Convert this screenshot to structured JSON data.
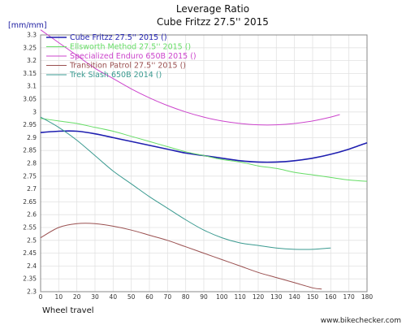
{
  "chart_data": {
    "type": "line",
    "title": "Leverage Ratio",
    "subtitle": "Cube Fritzz 27.5'' 2015",
    "ylabel": "[mm/mm]",
    "xlabel": "Wheel travel",
    "xlim": [
      0,
      180
    ],
    "ylim": [
      2.3,
      3.3
    ],
    "xticks": [
      0,
      10,
      20,
      30,
      40,
      50,
      60,
      70,
      80,
      90,
      100,
      110,
      120,
      130,
      140,
      150,
      160,
      170,
      180
    ],
    "yticks": [
      2.3,
      2.35,
      2.4,
      2.45,
      2.5,
      2.55,
      2.6,
      2.65,
      2.7,
      2.75,
      2.8,
      2.85,
      2.9,
      2.95,
      3,
      3.05,
      3.1,
      3.15,
      3.2,
      3.25,
      3.3
    ],
    "grid": true,
    "legend_position": "top-left",
    "series": [
      {
        "name": "Cube Fritzz 27.5'' 2015 ()",
        "color": "#1f1fb0",
        "width": 1.6,
        "x": [
          0,
          10,
          20,
          30,
          40,
          50,
          60,
          70,
          80,
          90,
          100,
          110,
          120,
          130,
          140,
          150,
          160,
          170,
          180
        ],
        "y": [
          2.92,
          2.925,
          2.925,
          2.915,
          2.9,
          2.885,
          2.87,
          2.855,
          2.84,
          2.83,
          2.82,
          2.81,
          2.805,
          2.805,
          2.81,
          2.82,
          2.835,
          2.855,
          2.88
        ]
      },
      {
        "name": "Ellsworth Method 27.5'' 2015 ()",
        "color": "#66dd66",
        "width": 1.0,
        "x": [
          0,
          10,
          20,
          30,
          40,
          50,
          60,
          70,
          80,
          90,
          100,
          110,
          120,
          130,
          140,
          150,
          160,
          170,
          180
        ],
        "y": [
          2.975,
          2.965,
          2.955,
          2.94,
          2.925,
          2.905,
          2.885,
          2.865,
          2.845,
          2.83,
          2.815,
          2.805,
          2.79,
          2.78,
          2.765,
          2.755,
          2.745,
          2.735,
          2.73
        ]
      },
      {
        "name": "Specialized Enduro 650B 2015 ()",
        "color": "#cc44cc",
        "width": 1.0,
        "x": [
          0,
          10,
          20,
          30,
          40,
          50,
          60,
          70,
          80,
          90,
          100,
          110,
          120,
          130,
          140,
          150,
          160,
          165
        ],
        "y": [
          3.32,
          3.27,
          3.22,
          3.17,
          3.13,
          3.09,
          3.055,
          3.025,
          3.0,
          2.98,
          2.965,
          2.955,
          2.95,
          2.95,
          2.955,
          2.965,
          2.98,
          2.99
        ]
      },
      {
        "name": "Transition Patrol 27.5'' 2015 ()",
        "color": "#9a5050",
        "width": 1.0,
        "x": [
          0,
          10,
          20,
          30,
          40,
          50,
          60,
          70,
          80,
          90,
          100,
          110,
          120,
          130,
          140,
          150,
          155
        ],
        "y": [
          2.51,
          2.55,
          2.565,
          2.565,
          2.555,
          2.54,
          2.52,
          2.5,
          2.475,
          2.45,
          2.425,
          2.4,
          2.375,
          2.355,
          2.335,
          2.315,
          2.31
        ]
      },
      {
        "name": "Trek Slash 650B 2014 ()",
        "color": "#3a9a90",
        "width": 1.0,
        "x": [
          0,
          10,
          20,
          30,
          40,
          50,
          60,
          70,
          80,
          90,
          100,
          110,
          120,
          130,
          140,
          150,
          160
        ],
        "y": [
          2.98,
          2.94,
          2.89,
          2.83,
          2.77,
          2.72,
          2.67,
          2.625,
          2.58,
          2.54,
          2.51,
          2.49,
          2.48,
          2.47,
          2.465,
          2.465,
          2.47
        ]
      }
    ]
  },
  "watermark": "www.bikechecker.com"
}
